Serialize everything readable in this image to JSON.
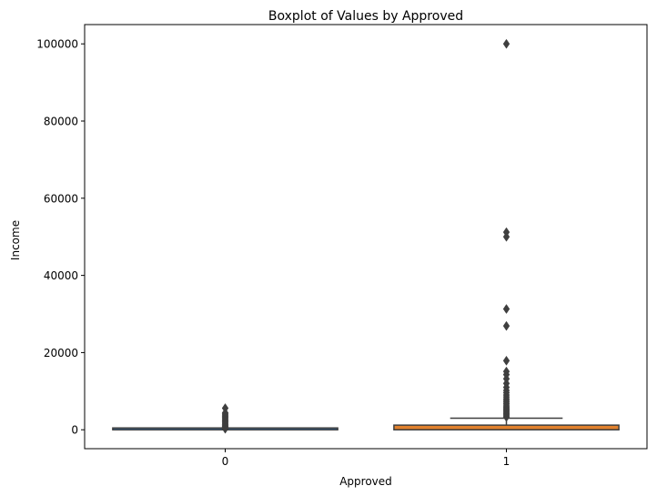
{
  "chart_data": {
    "type": "boxplot",
    "title": "Boxplot of Values by Approved",
    "xlabel": "Approved",
    "ylabel": "Income",
    "categories": [
      "0",
      "1"
    ],
    "ylim": [
      -4900,
      105000
    ],
    "yticks": [
      0,
      20000,
      40000,
      60000,
      80000,
      100000
    ],
    "ytick_labels": [
      "0",
      "20000",
      "40000",
      "60000",
      "80000",
      "100000"
    ],
    "grid": false,
    "legend": "none",
    "boxes": [
      {
        "name": "0",
        "color": "#3a75b0",
        "whisker_low": 0,
        "q1": 0,
        "median": 0,
        "q3": 0,
        "whisker_high": 0,
        "outliers": [
          250,
          450,
          700,
          900,
          1150,
          1400,
          1700,
          2000,
          2300,
          2600,
          2900,
          3200,
          3500,
          3800,
          4100,
          4400,
          5600
        ]
      },
      {
        "name": "1",
        "color": "#e1812c",
        "whisker_low": 0,
        "q1": 0,
        "median": 0,
        "q3": 1200,
        "whisker_high": 3000,
        "outliers": [
          3300,
          3600,
          3900,
          4200,
          4500,
          4800,
          5100,
          5400,
          5700,
          6000,
          6400,
          6800,
          7200,
          7600,
          8000,
          8500,
          9000,
          9600,
          10200,
          11000,
          12000,
          13200,
          14300,
          15100,
          17900,
          26900,
          31300,
          50000,
          51200,
          100000
        ]
      }
    ],
    "colors": {
      "line": "#3f3f3f",
      "axes": "#000000"
    }
  }
}
